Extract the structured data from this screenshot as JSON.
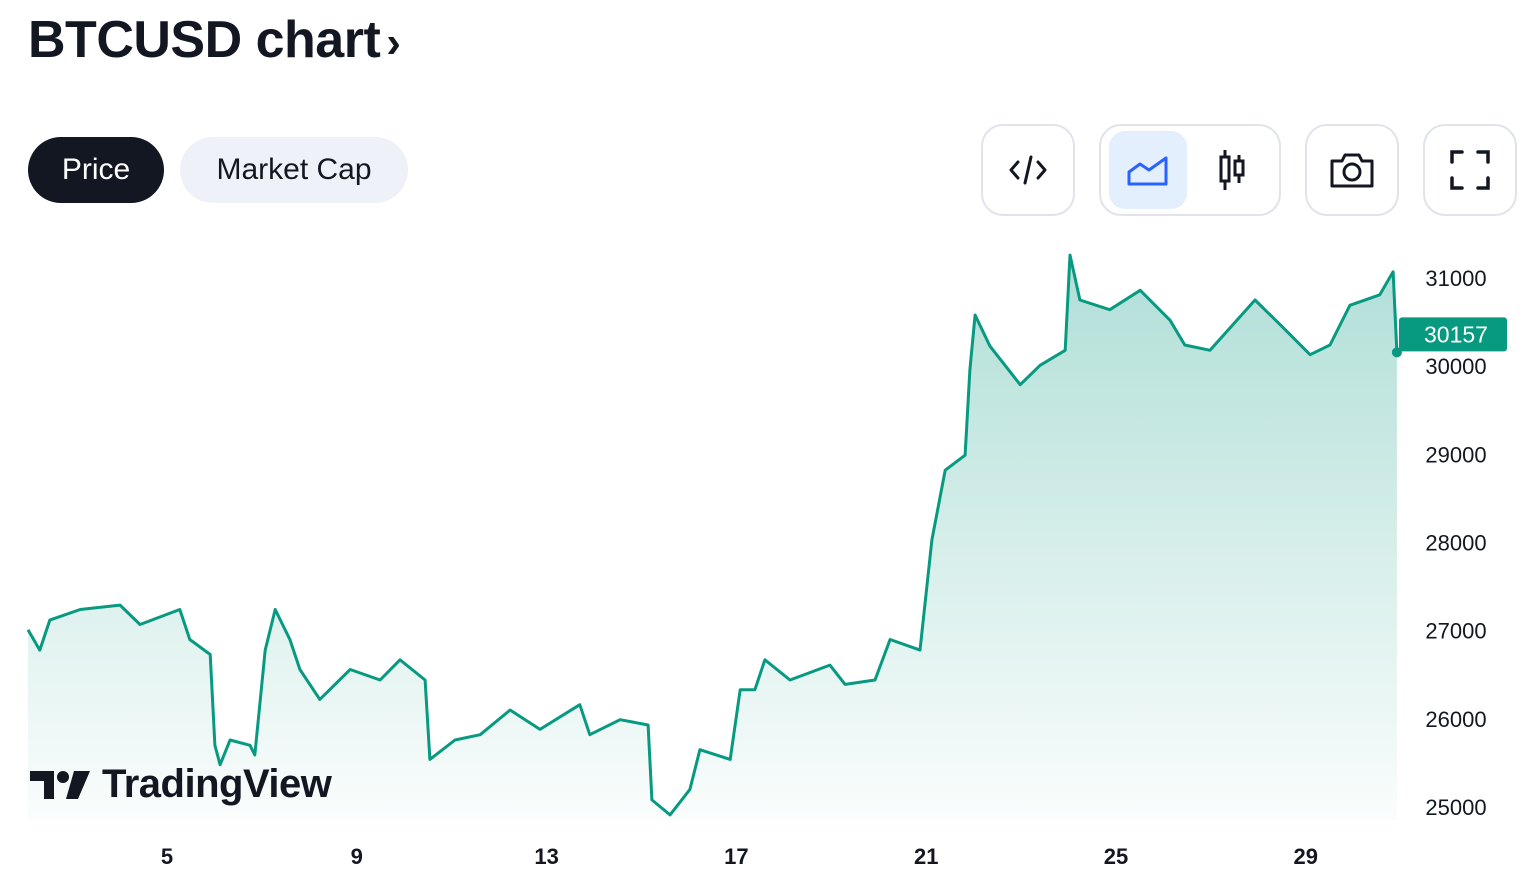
{
  "header": {
    "title": "BTCUSD chart",
    "chevron": "›"
  },
  "tabs": [
    {
      "label": "Price",
      "active": true
    },
    {
      "label": "Market Cap",
      "active": false
    }
  ],
  "toolbar": {
    "icons": [
      "embed-code-icon",
      "area-chart-icon",
      "candlestick-icon",
      "camera-icon",
      "fullscreen-icon"
    ],
    "active": "area-chart-icon",
    "accent": "#2962ff"
  },
  "logo": {
    "text": "TradingView"
  },
  "chart_data": {
    "type": "area",
    "title": "",
    "xlabel": "",
    "ylabel": "",
    "x_ticks": [
      "5",
      "9",
      "13",
      "17",
      "21",
      "25",
      "29"
    ],
    "y_ticks": [
      "25000",
      "26000",
      "27000",
      "28000",
      "29000",
      "30000",
      "31000"
    ],
    "ylim": [
      24800,
      31300
    ],
    "xlim": [
      2.07,
      30.92
    ],
    "line_color": "#089981",
    "last_price": "30157",
    "series": [
      {
        "x": [
          2.07,
          2.32,
          2.53,
          3.17,
          4.01,
          4.43,
          5.27,
          5.48,
          5.91,
          6.01,
          6.12,
          6.33,
          6.75,
          6.85,
          7.07,
          7.28,
          7.59,
          7.8,
          8.22,
          8.86,
          9.49,
          9.91,
          10.44,
          10.54,
          11.07,
          11.6,
          12.23,
          12.86,
          13.7,
          13.91,
          14.55,
          15.14,
          15.22,
          15.6,
          16.02,
          16.23,
          16.87,
          17.08,
          17.39,
          17.6,
          18.13,
          18.97,
          19.29,
          19.92,
          20.24,
          20.87,
          21.12,
          21.4,
          21.82,
          21.92,
          22.03,
          22.34,
          22.98,
          23.4,
          23.93,
          24.03,
          24.24,
          24.87,
          25.51,
          26.14,
          26.45,
          26.98,
          27.93,
          28.46,
          29.09,
          29.51,
          29.93,
          30.56,
          30.84,
          30.92
        ],
        "y": [
          27010,
          26780,
          27120,
          27240,
          27290,
          27070,
          27240,
          26900,
          26730,
          25700,
          25480,
          25760,
          25700,
          25590,
          26780,
          27240,
          26900,
          26560,
          26220,
          26560,
          26440,
          26670,
          26440,
          25540,
          25760,
          25820,
          26100,
          25880,
          26160,
          25820,
          25990,
          25930,
          25080,
          24910,
          25200,
          25650,
          25540,
          26330,
          26330,
          26670,
          26440,
          26610,
          26390,
          26440,
          26900,
          26780,
          28030,
          28820,
          28990,
          29960,
          30580,
          30230,
          29790,
          30010,
          30180,
          31260,
          30750,
          30640,
          30860,
          30520,
          30240,
          30180,
          30750,
          30470,
          30130,
          30240,
          30690,
          30810,
          31070,
          30157
        ]
      }
    ]
  }
}
